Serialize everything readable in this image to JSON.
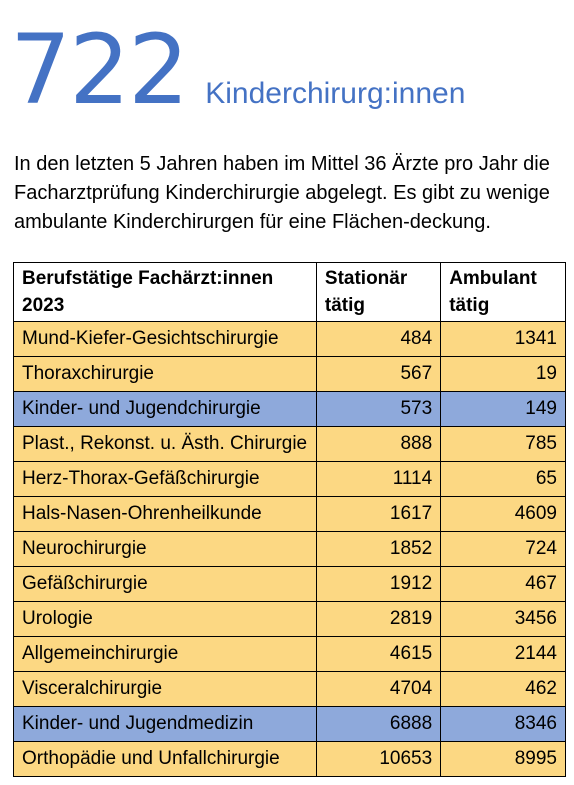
{
  "hero": {
    "number": "722",
    "label": "Kinderchirurg:innen"
  },
  "intro": "In den letzten 5 Jahren haben im Mittel 36 Ärzte pro Jahr die Facharztprüfung Kinderchirurgie abgelegt. Es gibt zu wenige ambulante Kinderchirurgen für eine Flächen-deckung.",
  "table": {
    "headers": [
      "Berufstätige Fachärzt:innen 2023",
      "Stationär tätig",
      "Ambulant tätig"
    ],
    "rows": [
      {
        "name": "Mund-Kiefer-Gesichtschirurgie",
        "stationaer": "484",
        "ambulant": "1341",
        "highlight": false
      },
      {
        "name": "Thoraxchirurgie",
        "stationaer": "567",
        "ambulant": "19",
        "highlight": false
      },
      {
        "name": "Kinder- und Jugendchirurgie",
        "stationaer": "573",
        "ambulant": "149",
        "highlight": true
      },
      {
        "name": "Plast., Rekonst. u. Ästh. Chirurgie",
        "stationaer": "888",
        "ambulant": "785",
        "highlight": false
      },
      {
        "name": "Herz-Thorax-Gefäßchirurgie",
        "stationaer": "1114",
        "ambulant": "65",
        "highlight": false
      },
      {
        "name": "Hals-Nasen-Ohrenheilkunde",
        "stationaer": "1617",
        "ambulant": "4609",
        "highlight": false
      },
      {
        "name": "Neurochirurgie",
        "stationaer": "1852",
        "ambulant": "724",
        "highlight": false
      },
      {
        "name": "Gefäßchirurgie",
        "stationaer": "1912",
        "ambulant": "467",
        "highlight": false
      },
      {
        "name": "Urologie",
        "stationaer": "2819",
        "ambulant": "3456",
        "highlight": false
      },
      {
        "name": "Allgemeinchirurgie",
        "stationaer": "4615",
        "ambulant": "2144",
        "highlight": false
      },
      {
        "name": "Visceralchirurgie",
        "stationaer": "4704",
        "ambulant": "462",
        "highlight": false
      },
      {
        "name": "Kinder- und Jugendmedizin",
        "stationaer": "6888",
        "ambulant": "8346",
        "highlight": true
      },
      {
        "name": "Orthopädie und Unfallchirurgie",
        "stationaer": "10653",
        "ambulant": "8995",
        "highlight": false
      }
    ]
  },
  "colors": {
    "accent": "#4472c4",
    "row_default": "#fcd883",
    "row_highlight": "#8ea9db"
  }
}
